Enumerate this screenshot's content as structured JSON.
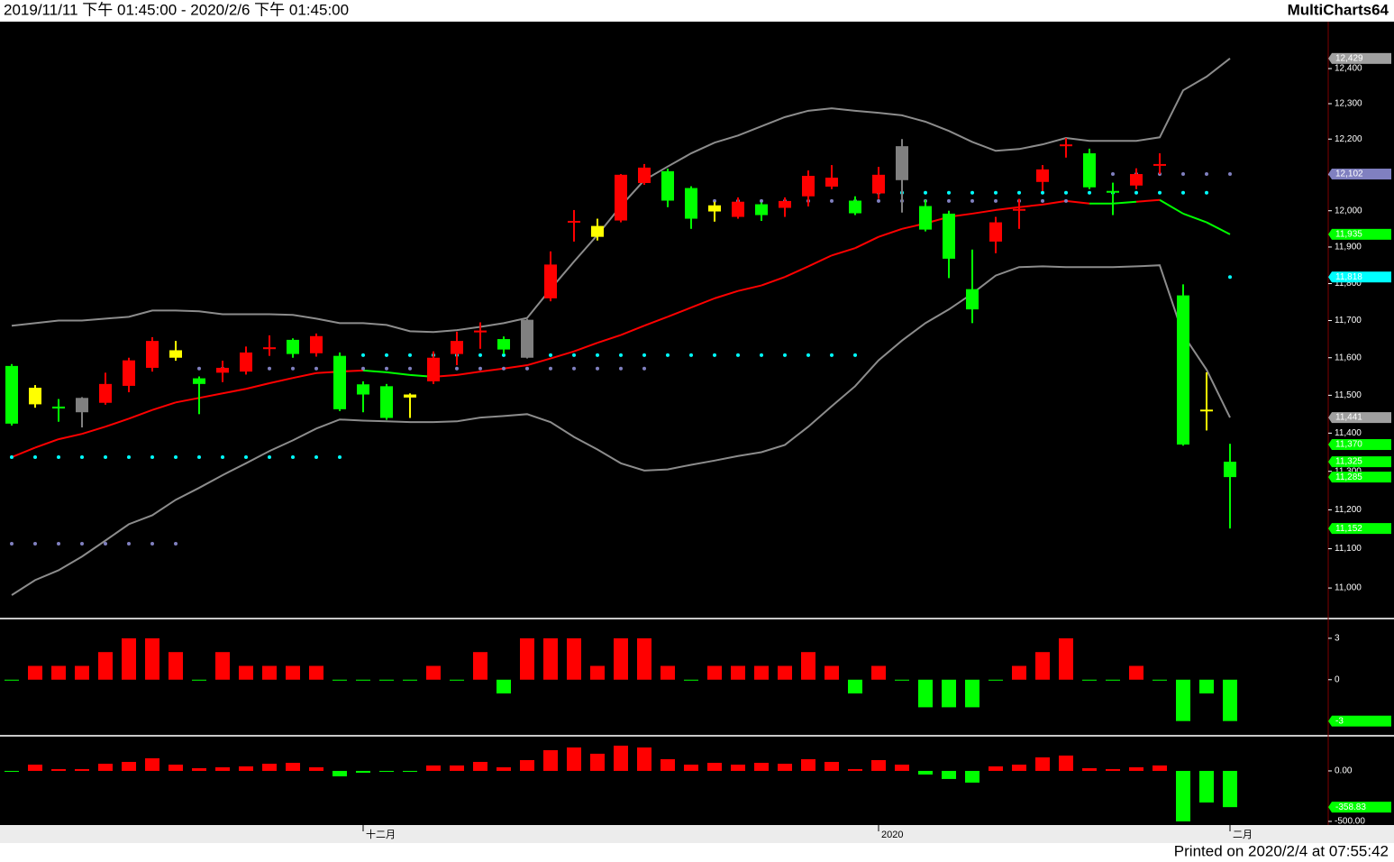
{
  "header": {
    "range": "2019/11/11 下午 01:45:00 - 2020/2/6 下午 01:45:00",
    "app": "MultiCharts64"
  },
  "footer": "Printed on 2020/2/4 at 07:55:42",
  "chart_data": [
    {
      "type": "candlestick",
      "log_scale": true,
      "ylim": [
        10925,
        12535
      ],
      "yticks": [
        {
          "value": 11000,
          "label": "11,000"
        },
        {
          "value": 11100,
          "label": "11,100"
        },
        {
          "value": 11200,
          "label": "11,200"
        },
        {
          "value": 11300,
          "label": "11,300"
        },
        {
          "value": 11400,
          "label": "11,400"
        },
        {
          "value": 11500,
          "label": "11,500"
        },
        {
          "value": 11600,
          "label": "11,600"
        },
        {
          "value": 11700,
          "label": "11,700"
        },
        {
          "value": 11800,
          "label": "11,800"
        },
        {
          "value": 11900,
          "label": "11,900"
        },
        {
          "value": 12000,
          "label": "12,000"
        },
        {
          "value": 12100,
          "label": "12,100"
        },
        {
          "value": 12200,
          "label": "12,200"
        },
        {
          "value": 12300,
          "label": "12,300"
        },
        {
          "value": 12400,
          "label": "12,400"
        }
      ],
      "categories": [
        null,
        null,
        null,
        null,
        null,
        null,
        null,
        null,
        null,
        null,
        null,
        null,
        null,
        null,
        null,
        "十二月",
        null,
        null,
        null,
        null,
        null,
        null,
        null,
        null,
        null,
        null,
        null,
        null,
        null,
        null,
        null,
        null,
        null,
        null,
        null,
        null,
        null,
        "2020",
        null,
        null,
        null,
        null,
        null,
        null,
        null,
        null,
        null,
        null,
        null,
        null,
        null,
        null,
        "二月"
      ],
      "open": [
        11578,
        11476,
        11470,
        11493,
        11480,
        11525,
        11573,
        11600,
        11545,
        11560,
        11563,
        11623,
        11648,
        11612,
        11605,
        11529,
        11524,
        11502,
        11537,
        11610,
        11668,
        11650,
        11702,
        11760,
        11968,
        11958,
        11973,
        12077,
        12110,
        12063,
        12015,
        11983,
        12018,
        12008,
        12040,
        12067,
        12028,
        12048,
        12180,
        12013,
        11992,
        11785,
        11915,
        12000,
        12080,
        12180,
        12160,
        12055,
        12070,
        12125,
        11768,
        11462,
        11325
      ],
      "high": [
        11583,
        11527,
        11490,
        11495,
        11560,
        11600,
        11655,
        11645,
        11550,
        11592,
        11630,
        11660,
        11652,
        11665,
        11614,
        11537,
        11530,
        11505,
        11617,
        11670,
        11695,
        11657,
        11704,
        11888,
        12002,
        11978,
        12102,
        12130,
        12117,
        12068,
        12025,
        12037,
        12023,
        12037,
        12112,
        12127,
        12040,
        12122,
        12200,
        12030,
        12000,
        11893,
        11983,
        12033,
        12127,
        12203,
        12173,
        12078,
        12118,
        12160,
        11798,
        11561,
        11372
      ],
      "low": [
        11420,
        11467,
        11430,
        11415,
        11475,
        11508,
        11563,
        11592,
        11450,
        11535,
        11555,
        11605,
        11600,
        11603,
        11458,
        11455,
        11435,
        11440,
        11530,
        11580,
        11624,
        11610,
        11598,
        11752,
        11915,
        11918,
        11968,
        12072,
        12010,
        11950,
        11970,
        11978,
        11972,
        11983,
        12012,
        12060,
        11988,
        12033,
        11995,
        11943,
        11815,
        11693,
        11883,
        11950,
        12055,
        12148,
        12060,
        11988,
        12060,
        12102,
        11367,
        11407,
        11152
      ],
      "close": [
        11425,
        11520,
        11465,
        11455,
        11530,
        11593,
        11645,
        11620,
        11530,
        11573,
        11614,
        11628,
        11610,
        11658,
        11463,
        11502,
        11440,
        11494,
        11600,
        11645,
        11673,
        11622,
        11600,
        11852,
        11972,
        11928,
        12100,
        12120,
        12028,
        11978,
        11998,
        12025,
        11988,
        12027,
        12097,
        12092,
        11993,
        12100,
        12085,
        11948,
        11868,
        11730,
        11968,
        12005,
        12115,
        12185,
        12065,
        12050,
        12102,
        12130,
        11370,
        11458,
        11285
      ],
      "colors": [
        "#00ff00",
        "#ffff00",
        "#00ff00",
        "#808080",
        "#ff0000",
        "#ff0000",
        "#ff0000",
        "#ffff00",
        "#00ff00",
        "#ff0000",
        "#ff0000",
        "#ff0000",
        "#00ff00",
        "#ff0000",
        "#00ff00",
        "#00ff00",
        "#00ff00",
        "#ffff00",
        "#ff0000",
        "#ff0000",
        "#ff0000",
        "#00ff00",
        "#808080",
        "#ff0000",
        "#ff0000",
        "#ffff00",
        "#ff0000",
        "#ff0000",
        "#00ff00",
        "#00ff00",
        "#ffff00",
        "#ff0000",
        "#00ff00",
        "#ff0000",
        "#ff0000",
        "#ff0000",
        "#00ff00",
        "#ff0000",
        "#808080",
        "#00ff00",
        "#00ff00",
        "#00ff00",
        "#ff0000",
        "#ff0000",
        "#ff0000",
        "#ff0000",
        "#00ff00",
        "#00ff00",
        "#ff0000",
        "#ff0000",
        "#00ff00",
        "#ffff00",
        "#00ff00"
      ],
      "band_color": "#8c8c8c",
      "upper_band": [
        11686,
        11693,
        11700,
        11700,
        11705,
        11710,
        11727,
        11727,
        11725,
        11717,
        11717,
        11717,
        11715,
        11705,
        11693,
        11693,
        11688,
        11671,
        11669,
        11674,
        11683,
        11693,
        11707,
        11785,
        11860,
        11933,
        12013,
        12085,
        12123,
        12160,
        12190,
        12210,
        12236,
        12262,
        12280,
        12287,
        12280,
        12274,
        12267,
        12249,
        12223,
        12192,
        12167,
        12172,
        12185,
        12203,
        12195,
        12195,
        12195,
        12205,
        12338,
        12377,
        12429
      ],
      "lower_band": [
        10982,
        11020,
        11045,
        11080,
        11121,
        11163,
        11186,
        11226,
        11257,
        11290,
        11321,
        11353,
        11381,
        11412,
        11436,
        11433,
        11431,
        11429,
        11429,
        11431,
        11441,
        11445,
        11450,
        11429,
        11390,
        11357,
        11321,
        11302,
        11305,
        11317,
        11328,
        11340,
        11350,
        11369,
        11417,
        11471,
        11524,
        11593,
        11646,
        11693,
        11730,
        11773,
        11822,
        11845,
        11847,
        11845,
        11845,
        11845,
        11847,
        11850,
        11662,
        11568,
        11441
      ],
      "middle_band": [
        11337,
        11362,
        11384,
        11398,
        11417,
        11438,
        11461,
        11481,
        11493,
        11505,
        11517,
        11532,
        11546,
        11559,
        11563,
        11566,
        11561,
        11554,
        11549,
        11554,
        11563,
        11571,
        11580,
        11598,
        11617,
        11640,
        11661,
        11686,
        11710,
        11735,
        11760,
        11780,
        11795,
        11818,
        11847,
        11877,
        11897,
        11928,
        11950,
        11965,
        11983,
        11992,
        12002,
        12010,
        12017,
        12027,
        12020,
        12020,
        12025,
        12030,
        11992,
        11968,
        11935
      ],
      "middle_colors": [
        "#ff0000",
        "#ff0000",
        "#ff0000",
        "#ff0000",
        "#ff0000",
        "#ff0000",
        "#ff0000",
        "#ff0000",
        "#ff0000",
        "#ff0000",
        "#ff0000",
        "#ff0000",
        "#ff0000",
        "#ff0000",
        "#ff0000",
        "#ff0000",
        "#00ff00",
        "#00ff00",
        "#00ff00",
        "#ff0000",
        "#ff0000",
        "#ff0000",
        "#ff0000",
        "#ff0000",
        "#ff0000",
        "#ff0000",
        "#ff0000",
        "#ff0000",
        "#ff0000",
        "#ff0000",
        "#ff0000",
        "#ff0000",
        "#ff0000",
        "#ff0000",
        "#ff0000",
        "#ff0000",
        "#ff0000",
        "#ff0000",
        "#ff0000",
        "#ff0000",
        "#ff0000",
        "#ff0000",
        "#ff0000",
        "#ff0000",
        "#ff0000",
        "#ff0000",
        "#ff0000",
        "#00ff00",
        "#00ff00",
        "#ff0000",
        "#00ff00",
        "#00ff00",
        "#00ff00"
      ],
      "stop_a_color": "#00ffff",
      "stop_a": [
        11337,
        11337,
        11337,
        11337,
        11337,
        11337,
        11337,
        11337,
        11337,
        11337,
        11337,
        11337,
        11337,
        11337,
        11337,
        11607,
        11607,
        11607,
        11607,
        11607,
        11607,
        11607,
        11607,
        11607,
        11607,
        11607,
        11607,
        11607,
        11607,
        11607,
        11607,
        11607,
        11607,
        11607,
        11607,
        11607,
        11607,
        12050,
        12050,
        12050,
        12050,
        12050,
        12050,
        12050,
        12050,
        12050,
        12050,
        12050,
        12050,
        12050,
        12050,
        12050,
        11818
      ],
      "stop_b_color": "#8080c0",
      "stop_b": [
        11113,
        11113,
        11113,
        11113,
        11113,
        11113,
        11113,
        11113,
        11571,
        11571,
        11571,
        11571,
        11571,
        11571,
        11571,
        11571,
        11571,
        11571,
        11571,
        11571,
        11571,
        11571,
        11571,
        11571,
        11571,
        11571,
        11571,
        11571,
        null,
        12027,
        12027,
        12027,
        12027,
        12027,
        12027,
        12027,
        12027,
        12027,
        12027,
        12027,
        12027,
        12027,
        12027,
        12027,
        12027,
        12027,
        12102,
        12102,
        12102,
        12102,
        12102,
        12102,
        12102
      ],
      "price_markers": [
        {
          "value": 12429,
          "label": "12,429",
          "color": "#a0a0a0"
        },
        {
          "value": 12102,
          "label": "12,102",
          "color": "#8080c0"
        },
        {
          "value": 11935,
          "label": "11,935",
          "color": "#00ff00"
        },
        {
          "value": 11818,
          "label": "11,818",
          "color": "#00ffff"
        },
        {
          "value": 11441,
          "label": "11,441",
          "color": "#a0a0a0"
        },
        {
          "value": 11370,
          "label": "11,370",
          "color": "#00ff00"
        },
        {
          "value": 11325,
          "label": "11,325",
          "color": "#00ff00"
        },
        {
          "value": 11285,
          "label": "11,285",
          "color": "#00ff00"
        },
        {
          "value": 11152,
          "label": "11,152",
          "color": "#00ff00"
        }
      ]
    },
    {
      "type": "bar",
      "ylim": [
        -4,
        4.3
      ],
      "yticks": [
        3,
        0
      ],
      "up_color": "#ff0000",
      "down_color": "#00ff00",
      "values": [
        0,
        1,
        1,
        1,
        2,
        3,
        3,
        2,
        0,
        2,
        1,
        1,
        1,
        1,
        0,
        0,
        0,
        0,
        1,
        0,
        2,
        -1,
        3,
        3,
        3,
        1,
        3,
        3,
        1,
        0,
        1,
        1,
        1,
        1,
        2,
        1,
        -1,
        1,
        0,
        -2,
        -2,
        -2,
        0,
        1,
        2,
        3,
        0,
        0,
        1,
        0,
        -3,
        -1,
        -3
      ],
      "price_markers": [
        {
          "value": -3,
          "label": "-3",
          "color": "#00ff00"
        }
      ]
    },
    {
      "type": "bar",
      "ylim": [
        -536,
        330
      ],
      "yticks": [
        {
          "value": 0,
          "label": "0.00"
        },
        {
          "value": -500,
          "label": "-500.00"
        }
      ],
      "up_color": "#ff0000",
      "down_color": "#00ff00",
      "values": [
        0,
        62,
        18,
        18,
        71,
        89,
        125,
        62,
        27,
        36,
        45,
        71,
        80,
        36,
        -54,
        -18,
        0,
        0,
        54,
        54,
        89,
        36,
        107,
        205,
        232,
        170,
        250,
        232,
        116,
        62,
        80,
        62,
        80,
        71,
        116,
        89,
        18,
        107,
        62,
        -36,
        -80,
        -116,
        45,
        62,
        134,
        152,
        27,
        18,
        36,
        54,
        -500,
        -313,
        -358.83
      ],
      "price_markers": [
        {
          "value": -358.83,
          "label": "-358.83",
          "color": "#00ff00"
        }
      ]
    }
  ]
}
